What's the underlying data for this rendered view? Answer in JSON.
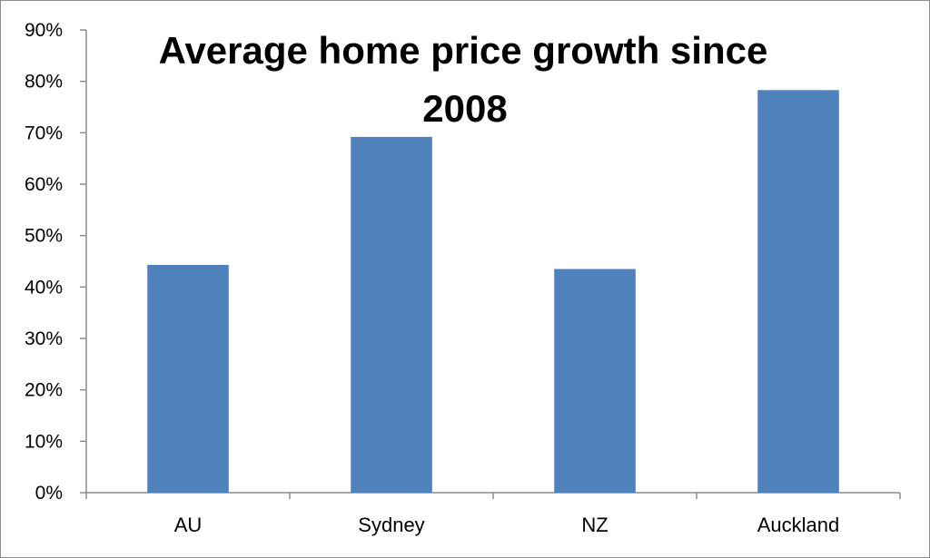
{
  "chart_data": {
    "type": "bar",
    "title_lines": [
      "Average home price growth since",
      "2008"
    ],
    "categories": [
      "AU",
      "Sydney",
      "NZ",
      "Auckland"
    ],
    "values": [
      44.3,
      69.2,
      43.5,
      78.3
    ],
    "y_ticks": [
      "0%",
      "10%",
      "20%",
      "30%",
      "40%",
      "50%",
      "60%",
      "70%",
      "80%",
      "90%"
    ],
    "ylim": [
      0,
      90
    ],
    "grid": false,
    "legend": "none",
    "bar_color": "#4f81bd"
  }
}
